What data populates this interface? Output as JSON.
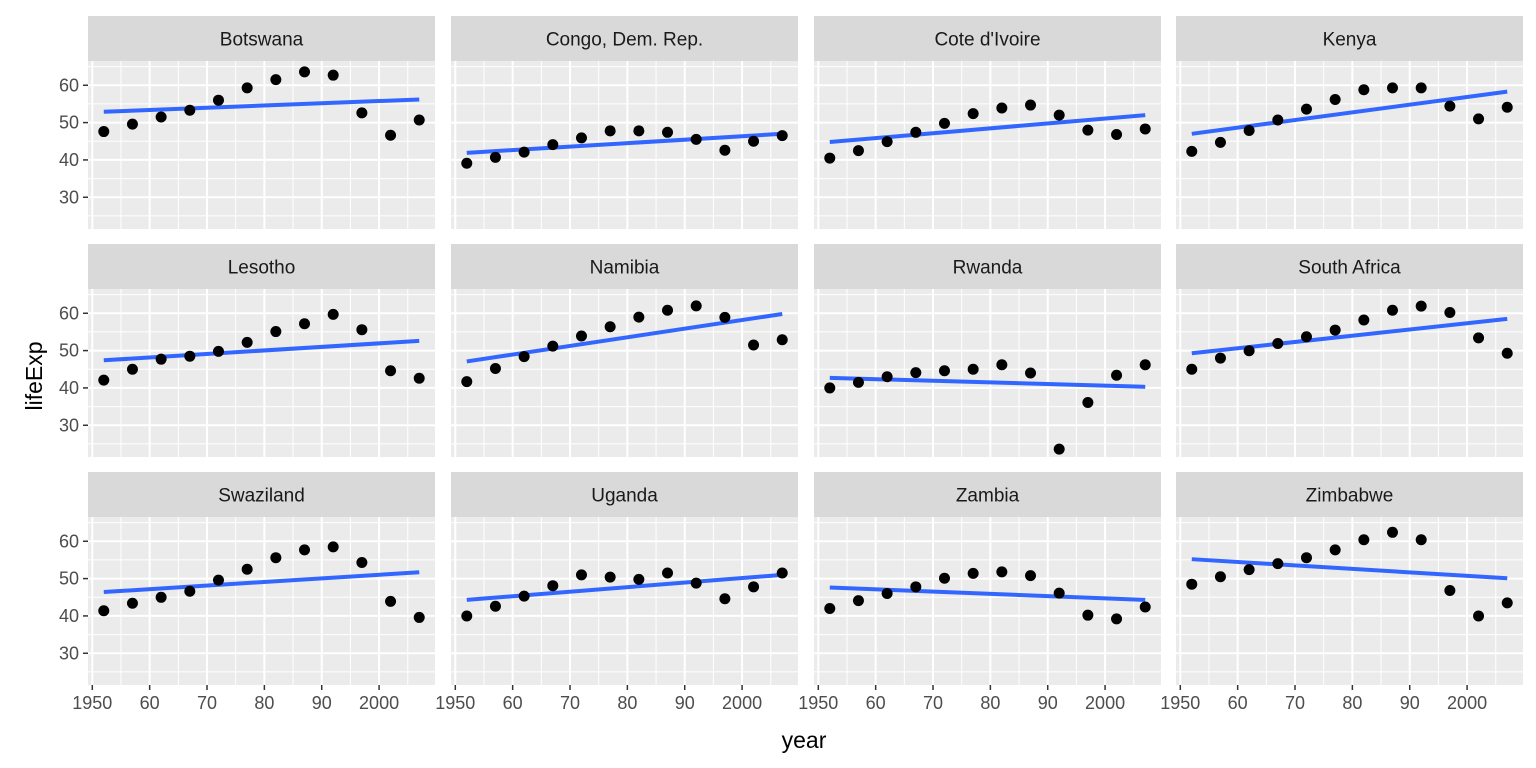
{
  "chart_data": {
    "type": "scatter",
    "facet_layout": "3x4 grid",
    "xlabel": "year",
    "ylabel": "lifeExp",
    "xlim": [
      1949.25,
      2009.75
    ],
    "ylim": [
      21.5,
      66.5
    ],
    "x_ticks": [
      1950,
      1960,
      1970,
      1980,
      1990,
      2000
    ],
    "x_tick_labels": [
      "1950",
      "60",
      "70",
      "80",
      "90",
      "2000"
    ],
    "y_ticks": [
      30,
      40,
      50,
      60
    ],
    "y_tick_labels": [
      "30",
      "40",
      "50",
      "60"
    ],
    "years": [
      1952,
      1957,
      1962,
      1967,
      1972,
      1977,
      1982,
      1987,
      1992,
      1997,
      2002,
      2007
    ],
    "point_color": "#000000",
    "line_color": "#3366FF",
    "panel_background": "#EBEBEB",
    "strip_background": "#D9D9D9",
    "grid": true,
    "facets": [
      {
        "name": "Botswana",
        "values": [
          47.6,
          49.6,
          51.5,
          53.3,
          56.0,
          59.3,
          61.5,
          63.6,
          62.7,
          52.6,
          46.6,
          50.7
        ],
        "fit": [
          52.9,
          56.2
        ]
      },
      {
        "name": "Congo, Dem. Rep.",
        "values": [
          39.1,
          40.7,
          42.1,
          44.1,
          45.9,
          47.8,
          47.8,
          47.4,
          45.5,
          42.6,
          45.0,
          46.5
        ],
        "fit": [
          41.9,
          47.0
        ]
      },
      {
        "name": "Cote d'Ivoire",
        "values": [
          40.5,
          42.5,
          44.9,
          47.4,
          49.8,
          52.4,
          53.9,
          54.7,
          52.0,
          47.99,
          46.8,
          48.3
        ],
        "fit": [
          44.8,
          52.0
        ]
      },
      {
        "name": "Kenya",
        "values": [
          42.3,
          44.7,
          47.9,
          50.7,
          53.6,
          56.2,
          58.8,
          59.3,
          59.3,
          54.4,
          51.0,
          54.1
        ],
        "fit": [
          47.0,
          58.3
        ]
      },
      {
        "name": "Lesotho",
        "values": [
          42.1,
          45.0,
          47.7,
          48.5,
          49.8,
          52.2,
          55.1,
          57.2,
          59.7,
          55.6,
          44.6,
          42.6
        ],
        "fit": [
          47.4,
          52.6
        ]
      },
      {
        "name": "Namibia",
        "values": [
          41.7,
          45.2,
          48.4,
          51.2,
          53.9,
          56.4,
          58.97,
          60.8,
          61.99,
          58.9,
          51.5,
          52.9
        ],
        "fit": [
          47.1,
          59.8
        ]
      },
      {
        "name": "Rwanda",
        "values": [
          40.0,
          41.5,
          43.0,
          44.1,
          44.6,
          45.0,
          46.2,
          44.0,
          23.6,
          36.1,
          43.4,
          46.2
        ],
        "fit": [
          42.7,
          40.3
        ]
      },
      {
        "name": "South Africa",
        "values": [
          45.0,
          48.0,
          49.95,
          51.9,
          53.7,
          55.5,
          58.2,
          60.8,
          61.9,
          60.2,
          53.4,
          49.3
        ],
        "fit": [
          49.3,
          58.5
        ]
      },
      {
        "name": "Swaziland",
        "values": [
          41.4,
          43.4,
          44.99,
          46.6,
          49.6,
          52.5,
          55.6,
          57.7,
          58.5,
          54.3,
          43.9,
          39.6
        ],
        "fit": [
          46.4,
          51.7
        ]
      },
      {
        "name": "Uganda",
        "values": [
          39.98,
          42.6,
          45.3,
          48.1,
          51.0,
          50.4,
          49.8,
          51.5,
          48.8,
          44.6,
          47.8,
          51.5
        ],
        "fit": [
          44.3,
          51.0
        ]
      },
      {
        "name": "Zambia",
        "values": [
          42.0,
          44.1,
          46.0,
          47.8,
          50.1,
          51.4,
          51.8,
          50.8,
          46.1,
          40.2,
          39.2,
          42.4
        ],
        "fit": [
          47.6,
          44.3
        ]
      },
      {
        "name": "Zimbabwe",
        "values": [
          48.5,
          50.5,
          52.4,
          54.0,
          55.6,
          57.7,
          60.4,
          62.4,
          60.4,
          46.8,
          39.99,
          43.5
        ],
        "fit": [
          55.2,
          50.1
        ]
      }
    ]
  }
}
